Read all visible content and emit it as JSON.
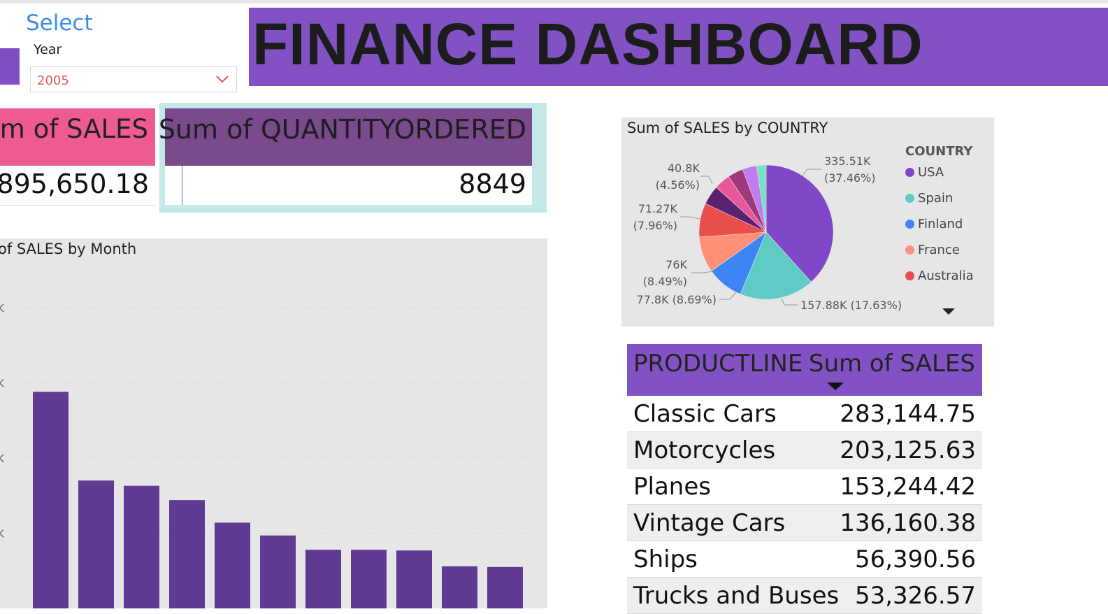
{
  "header": {
    "title": "FINANCE DASHBOARD"
  },
  "slicer": {
    "title": "Select",
    "label": "Year",
    "selected": "2005"
  },
  "kpis": {
    "sales": {
      "title": "um of SALES",
      "value": "895,650.18"
    },
    "quantity": {
      "title": "Sum of QUANTITYORDERED",
      "value": "8849"
    }
  },
  "colors": {
    "accent": "#8252c4",
    "bar": "#613b93",
    "sales_card": "#ee5b93",
    "qty_card": "#7a4a8c"
  },
  "bar_chart": {
    "title": "of SALES by Month",
    "chart_data": {
      "type": "bar",
      "title": "of SALES by Month",
      "categories": [
        "",
        "",
        "",
        "",
        "",
        "",
        "",
        "",
        "",
        "",
        ""
      ],
      "values": [
        288,
        170,
        163,
        144,
        114,
        97,
        78,
        78,
        77,
        56,
        55
      ],
      "ylim": [
        0,
        450
      ],
      "grid": true
    }
  },
  "pie_chart": {
    "title": "Sum of SALES by COUNTRY",
    "legend_title": "COUNTRY",
    "legend": [
      {
        "name": "USA",
        "color": "#8047c8"
      },
      {
        "name": "Spain",
        "color": "#5ecbc5"
      },
      {
        "name": "Finland",
        "color": "#3d84f4"
      },
      {
        "name": "France",
        "color": "#ff8f77"
      },
      {
        "name": "Australia",
        "color": "#e94e4e"
      }
    ],
    "chart_data": {
      "type": "pie",
      "title": "Sum of SALES by COUNTRY",
      "labels": [
        "USA",
        "Spain",
        "Finland",
        "France",
        "Australia",
        "",
        "",
        "",
        "",
        ""
      ],
      "values": [
        335.51,
        157.88,
        77.8,
        76,
        71.27,
        40.8,
        34,
        33,
        30,
        20
      ],
      "colors": [
        "#8047c8",
        "#5ecbc5",
        "#3d84f4",
        "#ff8f77",
        "#e94e4e",
        "#5a226e",
        "#e9569a",
        "#a1387e",
        "#c07cf0",
        "#7ae0c8"
      ],
      "data_labels": [
        {
          "text1": "335.51K",
          "text2": "(37.46%)"
        },
        {
          "text1": "157.88K (17.63%)"
        },
        {
          "text1": "77.8K (8.69%)"
        },
        {
          "text1": "76K",
          "text2": "(8.49%)"
        },
        {
          "text1": "71.27K",
          "text2": "(7.96%)"
        },
        {
          "text1": "40.8K",
          "text2": "(4.56%)"
        }
      ]
    }
  },
  "table": {
    "columns": [
      "PRODUCTLINE",
      "Sum of SALES"
    ],
    "rows": [
      [
        "Classic Cars",
        "283,144.75"
      ],
      [
        "Motorcycles",
        "203,125.63"
      ],
      [
        "Planes",
        "153,244.42"
      ],
      [
        "Vintage Cars",
        "136,160.38"
      ],
      [
        "Ships",
        "56,390.56"
      ],
      [
        "Trucks and Buses",
        "53,326.57"
      ]
    ]
  }
}
